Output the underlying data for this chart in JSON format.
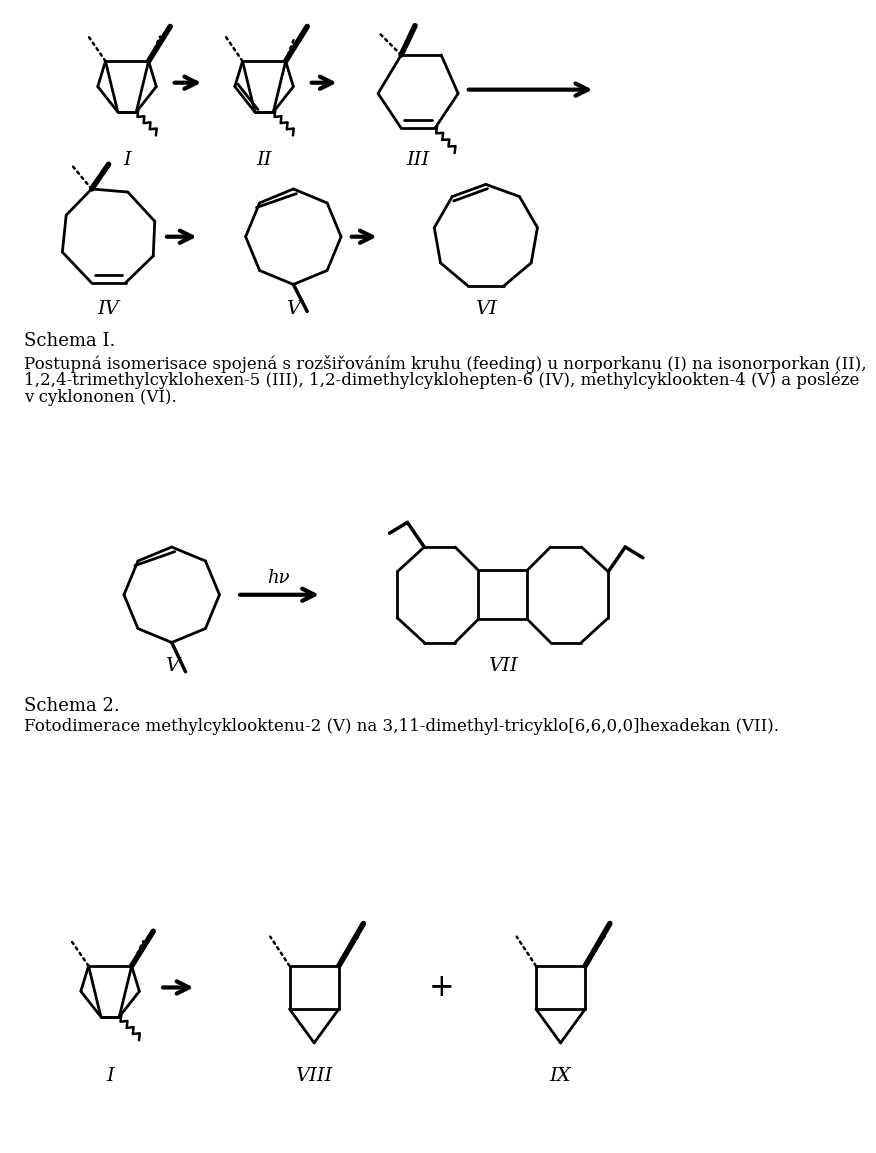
{
  "fig_width": 9.6,
  "fig_height": 14.72,
  "background_color": "#ffffff",
  "schema1_label": "Schema I.",
  "schema1_para1": "Postupná isomerisace spojená s rozšiřováním kruhu (feeding) u norporkanu (I) na isonorporkan (II),",
  "schema1_para2": "1,2,4-trimethylcyklohexen-5 (III), 1,2-dimethylcyklohepten-6 (IV), methylcyklookten-4 (V) a posléze",
  "schema1_para3": "v cyklononen (VI).",
  "schema2_label": "Schema 2.",
  "schema2_para": "Fotodimerace methylcyklooktenu-2 (V) na 3,11-dimethyl-tricyklo[6,6,0,0]hexadekan (VII).",
  "label_I": "I",
  "label_II": "II",
  "label_III": "III",
  "label_IV": "IV",
  "label_V": "V",
  "label_VI": "VI",
  "label_VII": "VII",
  "label_VIII": "VIII",
  "label_IX": "IX",
  "hv_label": "hν"
}
